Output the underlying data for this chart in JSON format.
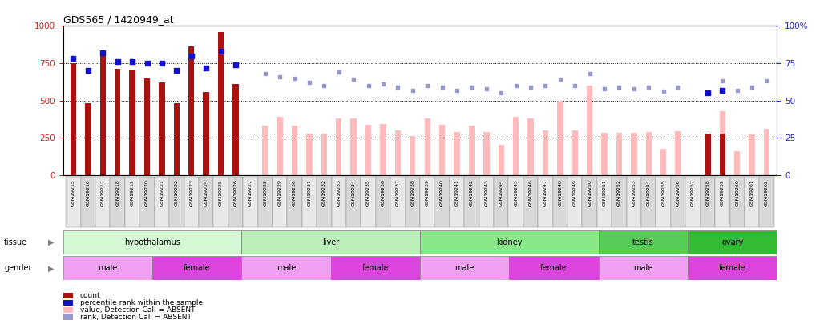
{
  "title": "GDS565 / 1420949_at",
  "samples": [
    "GSM19215",
    "GSM19216",
    "GSM19217",
    "GSM19218",
    "GSM19219",
    "GSM19220",
    "GSM19221",
    "GSM19222",
    "GSM19223",
    "GSM19224",
    "GSM19225",
    "GSM19226",
    "GSM19227",
    "GSM19228",
    "GSM19229",
    "GSM19230",
    "GSM19231",
    "GSM19232",
    "GSM19233",
    "GSM19234",
    "GSM19235",
    "GSM19236",
    "GSM19237",
    "GSM19238",
    "GSM19239",
    "GSM19240",
    "GSM19241",
    "GSM19242",
    "GSM19243",
    "GSM19244",
    "GSM19245",
    "GSM19246",
    "GSM19247",
    "GSM19248",
    "GSM19249",
    "GSM19250",
    "GSM19251",
    "GSM19252",
    "GSM19253",
    "GSM19254",
    "GSM19255",
    "GSM19256",
    "GSM19257",
    "GSM19258",
    "GSM19259",
    "GSM19260",
    "GSM19261",
    "GSM19262"
  ],
  "count_values": [
    750,
    480,
    820,
    710,
    700,
    650,
    620,
    480,
    860,
    555,
    960,
    610,
    null,
    null,
    null,
    null,
    null,
    null,
    null,
    null,
    null,
    null,
    null,
    null,
    null,
    null,
    null,
    null,
    null,
    null,
    null,
    null,
    null,
    null,
    null,
    null,
    null,
    null,
    null,
    null,
    null,
    null,
    null,
    280,
    280,
    null,
    null,
    null
  ],
  "absent_values": [
    null,
    null,
    null,
    null,
    null,
    null,
    null,
    null,
    null,
    null,
    null,
    null,
    null,
    330,
    390,
    330,
    280,
    280,
    380,
    380,
    335,
    340,
    300,
    260,
    380,
    335,
    290,
    330,
    290,
    200,
    390,
    380,
    300,
    500,
    300,
    600,
    285,
    285,
    285,
    290,
    175,
    295,
    null,
    null,
    430,
    160,
    270,
    310
  ],
  "rank_present": [
    78,
    70,
    82,
    76,
    76,
    75,
    75,
    70,
    80,
    72,
    83,
    74,
    null,
    null,
    null,
    null,
    null,
    null,
    null,
    null,
    null,
    null,
    null,
    null,
    null,
    null,
    null,
    null,
    null,
    null,
    null,
    null,
    null,
    null,
    null,
    null,
    null,
    null,
    null,
    null,
    null,
    null,
    null,
    55,
    57,
    null,
    null,
    null
  ],
  "rank_absent": [
    null,
    null,
    null,
    null,
    null,
    null,
    null,
    null,
    null,
    null,
    null,
    null,
    null,
    68,
    66,
    65,
    62,
    60,
    69,
    64,
    60,
    61,
    59,
    57,
    60,
    59,
    57,
    59,
    58,
    55,
    60,
    59,
    60,
    64,
    60,
    68,
    58,
    59,
    58,
    59,
    56,
    59,
    null,
    null,
    63,
    57,
    59,
    63
  ],
  "tissue_groups": [
    {
      "label": "hypothalamus",
      "start": 0,
      "end": 11,
      "color": "#d4f7d4"
    },
    {
      "label": "liver",
      "start": 12,
      "end": 23,
      "color": "#b8f0b8"
    },
    {
      "label": "kidney",
      "start": 24,
      "end": 35,
      "color": "#88e888"
    },
    {
      "label": "testis",
      "start": 36,
      "end": 41,
      "color": "#55cc55"
    },
    {
      "label": "ovary",
      "start": 42,
      "end": 47,
      "color": "#33bb33"
    }
  ],
  "gender_groups": [
    {
      "label": "male",
      "start": 0,
      "end": 5,
      "color": "#f0a0f0"
    },
    {
      "label": "female",
      "start": 6,
      "end": 11,
      "color": "#dd44dd"
    },
    {
      "label": "male",
      "start": 12,
      "end": 17,
      "color": "#f0a0f0"
    },
    {
      "label": "female",
      "start": 18,
      "end": 23,
      "color": "#dd44dd"
    },
    {
      "label": "male",
      "start": 24,
      "end": 29,
      "color": "#f0a0f0"
    },
    {
      "label": "female",
      "start": 30,
      "end": 35,
      "color": "#dd44dd"
    },
    {
      "label": "male",
      "start": 36,
      "end": 41,
      "color": "#f0a0f0"
    },
    {
      "label": "female",
      "start": 42,
      "end": 47,
      "color": "#dd44dd"
    }
  ],
  "ylim_left": [
    0,
    1000
  ],
  "ylim_right": [
    0,
    100
  ],
  "bar_color_present": "#aa1111",
  "bar_color_absent": "#ffbbbb",
  "dot_color_present": "#1111cc",
  "dot_color_absent": "#9999cc",
  "tick_color_left": "#cc2222",
  "tick_color_right": "#2222cc",
  "figsize": [
    10.48,
    4.05
  ],
  "dpi": 100
}
